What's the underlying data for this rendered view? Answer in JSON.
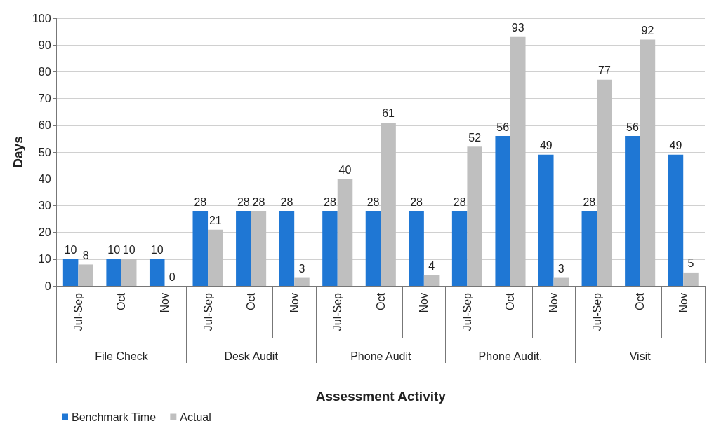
{
  "chart_data": {
    "type": "bar",
    "xlabel": "Assessment Activity",
    "ylabel": "Days",
    "categories": [
      "Jul-Sep",
      "Oct",
      "Nov",
      "Jul-Sep",
      "Oct",
      "Nov",
      "Jul-Sep",
      "Oct",
      "Nov",
      "Jul-Sep",
      "Oct",
      "Nov",
      "Jul-Sep",
      "Oct",
      "Nov"
    ],
    "annotations": [
      "File Check",
      "Desk Audit",
      "Phone Audit",
      "Phone Audit.",
      "Visit"
    ],
    "series": [
      {
        "name": "Benchmark Time",
        "color": "#1f77d4",
        "values": [
          10,
          10,
          10,
          28,
          28,
          28,
          28,
          28,
          28,
          28,
          56,
          49,
          28,
          56,
          49
        ]
      },
      {
        "name": "Actual",
        "color": "#bfbfbf",
        "values": [
          8,
          10,
          0,
          21,
          28,
          3,
          40,
          61,
          4,
          52,
          93,
          3,
          77,
          92,
          5
        ]
      }
    ],
    "ylim": [
      0,
      100
    ],
    "yticks": [
      0,
      10,
      20,
      30,
      40,
      50,
      60,
      70,
      80,
      90,
      100
    ],
    "grid": "y",
    "legend": "bottom left",
    "data_labels": true
  }
}
